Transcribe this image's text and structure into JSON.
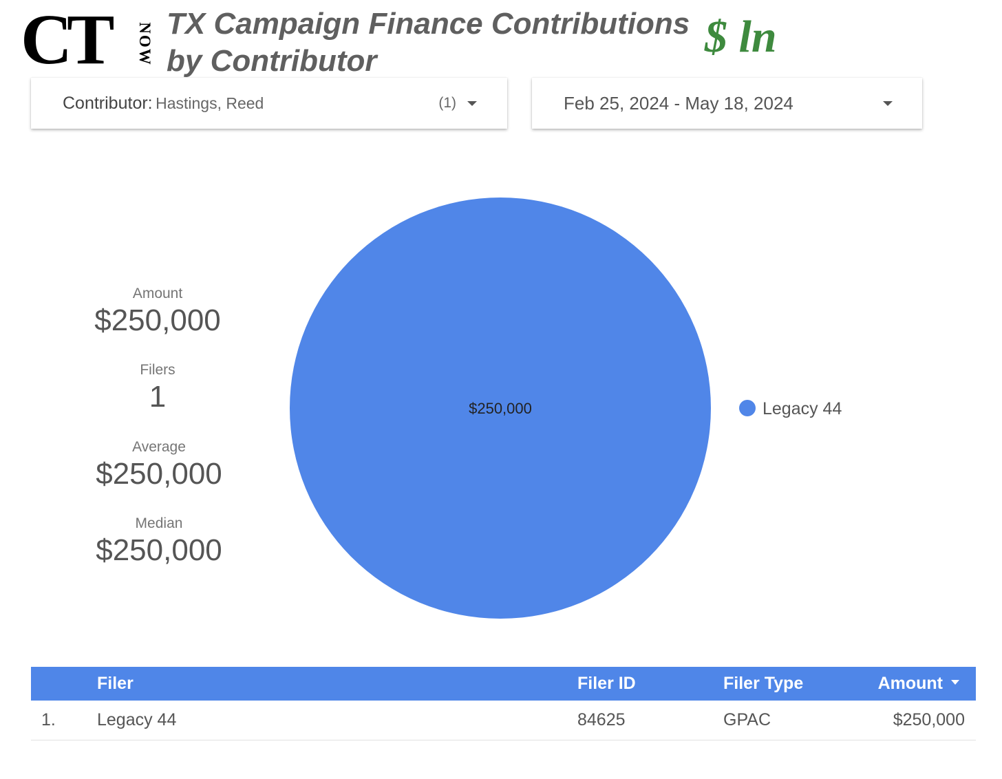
{
  "logo": {
    "main": "CT",
    "side": "NOW"
  },
  "header": {
    "title_line1": "TX Campaign Finance Contributions",
    "title_line2": "by Contributor",
    "brand": "$ ln"
  },
  "filters": {
    "contributor": {
      "label": "Contributor:",
      "value": "Hastings, Reed",
      "count": "(1)"
    },
    "date_range": {
      "value": "Feb 25, 2024 - May 18, 2024"
    }
  },
  "metrics": {
    "amount": {
      "label": "Amount",
      "value": "$250,000"
    },
    "filers": {
      "label": "Filers",
      "value": "1"
    },
    "average": {
      "label": "Average",
      "value": "$250,000"
    },
    "median": {
      "label": "Median",
      "value": "$250,000"
    }
  },
  "colors": {
    "accent": "#4f86e8",
    "brand_green": "#3e8a3e"
  },
  "chart_data": {
    "type": "pie",
    "slices": [
      {
        "label": "Legacy 44",
        "value": 250000,
        "display": "$250,000",
        "color": "#5086e8"
      }
    ],
    "legend_position": "right"
  },
  "table": {
    "columns": [
      "Filer",
      "Filer ID",
      "Filer Type",
      "Amount"
    ],
    "sort_column": "Amount",
    "rows": [
      {
        "index": "1.",
        "filer": "Legacy 44",
        "filer_id": "84625",
        "filer_type": "GPAC",
        "amount": "$250,000"
      }
    ]
  }
}
